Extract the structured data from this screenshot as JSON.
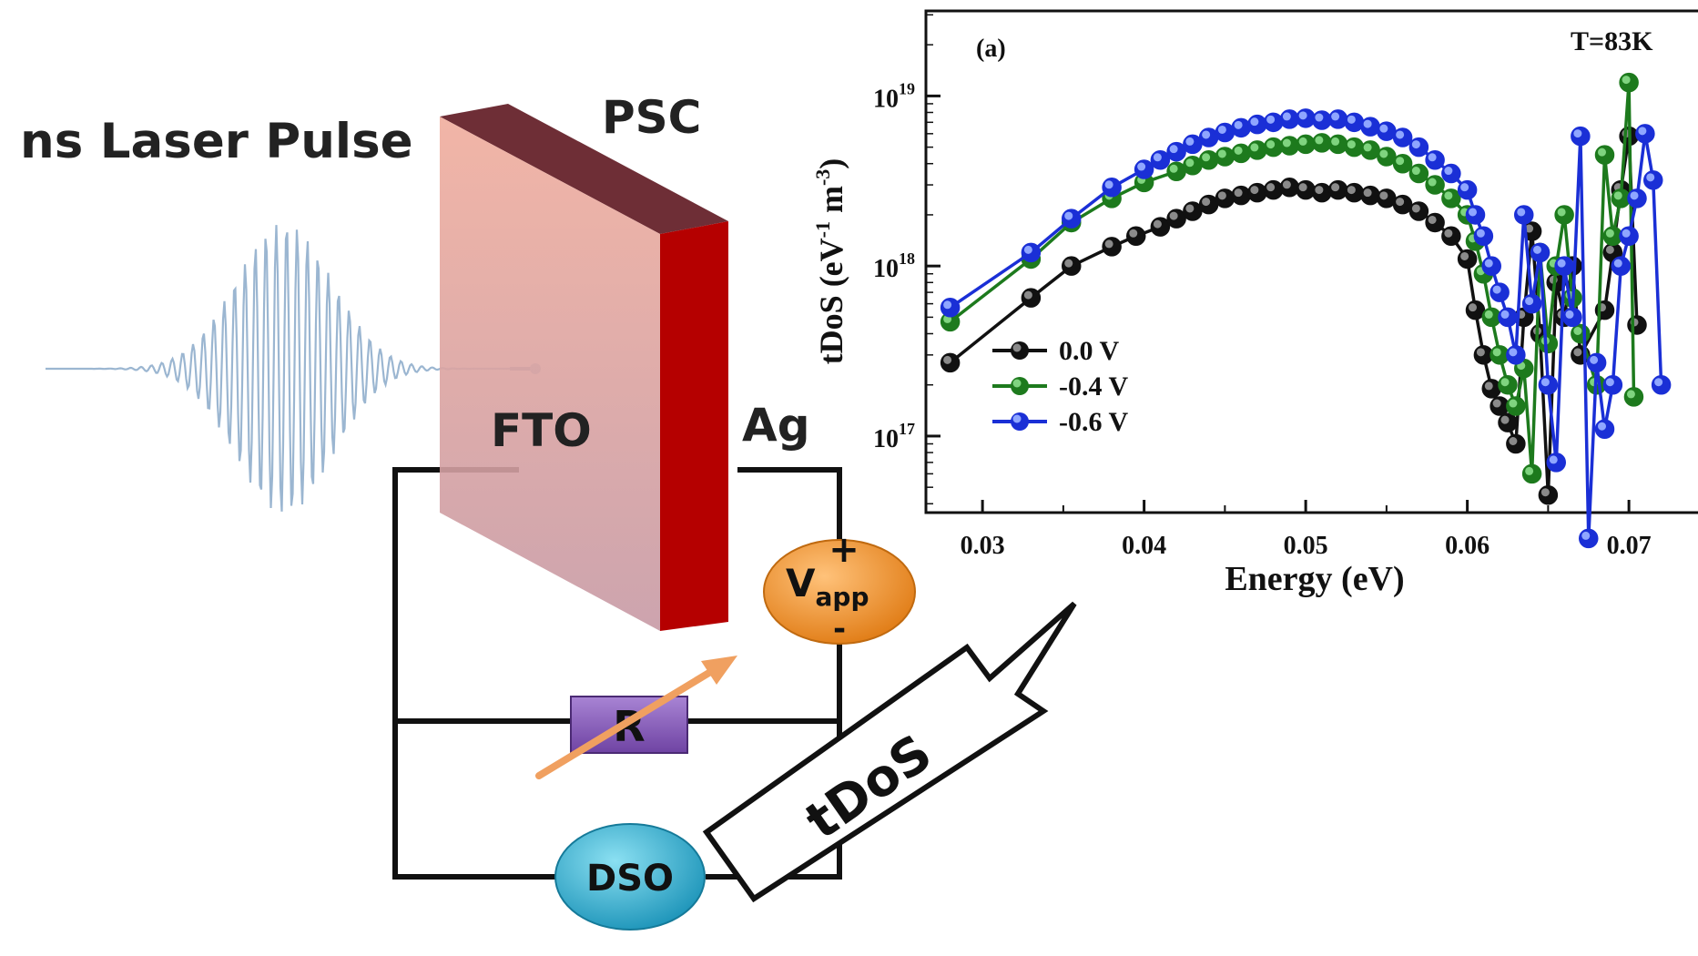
{
  "diagram": {
    "laser_label": "ns Laser Pulse",
    "device_label": "PSC",
    "left_electrode": "FTO",
    "right_electrode": "Ag",
    "source_main": "V",
    "source_sub": "app",
    "source_plus": "+",
    "source_minus": "-",
    "resistor_label": "R",
    "scope_label": "DSO",
    "arrow_label": "tDoS",
    "colors": {
      "pulse": "#7fa3c6",
      "device_front": "#e8a79a",
      "device_top": "#6e2e36",
      "device_side": "#b50000",
      "source_fill": "#f0922e",
      "resistor_fill": "#8a5fb8",
      "scope_fill": "#3bb2d0",
      "wire": "#111111",
      "variable_arrow": "#f0a060"
    }
  },
  "chart_data": {
    "type": "scatter",
    "panel_label": "(a)",
    "annotation": "T=83K",
    "xlabel": "Energy (eV)",
    "ylabel_main": "tDoS (eV",
    "ylabel_sup1": "-1",
    "ylabel_mid": " m",
    "ylabel_sup2": "-3",
    "ylabel_end": ")",
    "xlim": [
      0.0265,
      0.0745
    ],
    "ylim_log10": [
      16.55,
      19.5
    ],
    "x_ticks": [
      0.03,
      0.04,
      0.05,
      0.06,
      0.07
    ],
    "x_tick_labels": [
      "0.03",
      "0.04",
      "0.05",
      "0.06",
      "0.07"
    ],
    "y_ticks_log10": [
      17,
      18,
      19
    ],
    "y_tick_bases": [
      "10",
      "10",
      "10"
    ],
    "y_tick_exps": [
      "17",
      "18",
      "19"
    ],
    "legend_position": "lower-left",
    "series": [
      {
        "name": "0.0 V",
        "color": "#111111",
        "highlight": "#8a8a8a",
        "x": [
          0.028,
          0.033,
          0.0355,
          0.038,
          0.0395,
          0.041,
          0.042,
          0.043,
          0.044,
          0.045,
          0.046,
          0.047,
          0.048,
          0.049,
          0.05,
          0.051,
          0.052,
          0.053,
          0.054,
          0.055,
          0.056,
          0.057,
          0.058,
          0.059,
          0.06,
          0.0605,
          0.061,
          0.0615,
          0.062,
          0.0625,
          0.063,
          0.0635,
          0.064,
          0.0645,
          0.065,
          0.0655,
          0.066,
          0.0665,
          0.067,
          0.0685,
          0.069,
          0.0695,
          0.07,
          0.0705
        ],
        "y": [
          2.7e+17,
          6.5e+17,
          1e+18,
          1.3e+18,
          1.5e+18,
          1.7e+18,
          1.9e+18,
          2.1e+18,
          2.3e+18,
          2.5e+18,
          2.6e+18,
          2.7e+18,
          2.8e+18,
          2.9e+18,
          2.8e+18,
          2.7e+18,
          2.8e+18,
          2.7e+18,
          2.6e+18,
          2.5e+18,
          2.3e+18,
          2.1e+18,
          1.8e+18,
          1.5e+18,
          1.1e+18,
          5.5e+17,
          3e+17,
          1.9e+17,
          1.5e+17,
          1.2e+17,
          9e+16,
          5e+17,
          1.6e+18,
          4e+17,
          4.5e+16,
          8e+17,
          5e+17,
          1e+18,
          3e+17,
          5.5e+17,
          1.2e+18,
          2.8e+18,
          5.8e+18,
          4.5e+17
        ]
      },
      {
        "name": "-0.4 V",
        "color": "#1d7a1d",
        "highlight": "#7fd47f",
        "x": [
          0.028,
          0.033,
          0.0355,
          0.038,
          0.04,
          0.042,
          0.043,
          0.044,
          0.045,
          0.046,
          0.047,
          0.048,
          0.049,
          0.05,
          0.051,
          0.052,
          0.053,
          0.054,
          0.055,
          0.056,
          0.057,
          0.058,
          0.059,
          0.06,
          0.0605,
          0.061,
          0.0615,
          0.062,
          0.0625,
          0.063,
          0.0635,
          0.064,
          0.0645,
          0.065,
          0.0655,
          0.066,
          0.0665,
          0.067,
          0.068,
          0.0685,
          0.069,
          0.0695,
          0.07,
          0.0703
        ],
        "y": [
          4.7e+17,
          1.1e+18,
          1.8e+18,
          2.5e+18,
          3.1e+18,
          3.6e+18,
          3.9e+18,
          4.2e+18,
          4.4e+18,
          4.6e+18,
          4.8e+18,
          5e+18,
          5.1e+18,
          5.2e+18,
          5.3e+18,
          5.2e+18,
          5e+18,
          4.8e+18,
          4.4e+18,
          4e+18,
          3.5e+18,
          3e+18,
          2.5e+18,
          2e+18,
          1.4e+18,
          9e+17,
          5e+17,
          3e+17,
          2e+17,
          1.5e+17,
          2.5e+17,
          6e+16,
          1.2e+18,
          3.5e+17,
          1e+18,
          2e+18,
          6.5e+17,
          4e+17,
          2e+17,
          4.5e+18,
          1.5e+18,
          2.5e+18,
          1.2e+19,
          1.7e+17
        ]
      },
      {
        "name": "-0.6 V",
        "color": "#1a2fd6",
        "highlight": "#8fa6ff",
        "x": [
          0.028,
          0.033,
          0.0355,
          0.038,
          0.04,
          0.041,
          0.042,
          0.043,
          0.044,
          0.045,
          0.046,
          0.047,
          0.048,
          0.049,
          0.05,
          0.051,
          0.052,
          0.053,
          0.054,
          0.055,
          0.056,
          0.057,
          0.058,
          0.059,
          0.06,
          0.0605,
          0.061,
          0.0615,
          0.062,
          0.0625,
          0.063,
          0.0635,
          0.064,
          0.0645,
          0.065,
          0.0655,
          0.066,
          0.0665,
          0.067,
          0.0675,
          0.068,
          0.0685,
          0.069,
          0.0695,
          0.07,
          0.0705,
          0.071,
          0.0715,
          0.072
        ],
        "y": [
          5.7e+17,
          1.2e+18,
          1.9e+18,
          2.9e+18,
          3.7e+18,
          4.2e+18,
          4.7e+18,
          5.2e+18,
          5.7e+18,
          6.1e+18,
          6.5e+18,
          6.8e+18,
          7e+18,
          7.3e+18,
          7.4e+18,
          7.2e+18,
          7.3e+18,
          7e+18,
          6.6e+18,
          6.2e+18,
          5.7e+18,
          5e+18,
          4.2e+18,
          3.5e+18,
          2.8e+18,
          2e+18,
          1.5e+18,
          1e+18,
          7e+17,
          5e+17,
          3e+17,
          2e+18,
          6e+17,
          1.2e+18,
          2e+17,
          7e+16,
          1e+18,
          5e+17,
          5.8e+18,
          2.5e+16,
          2.7e+17,
          1.1e+17,
          2e+17,
          1e+18,
          1.5e+18,
          2.5e+18,
          6e+18,
          3.2e+18,
          2e+17
        ]
      }
    ]
  }
}
